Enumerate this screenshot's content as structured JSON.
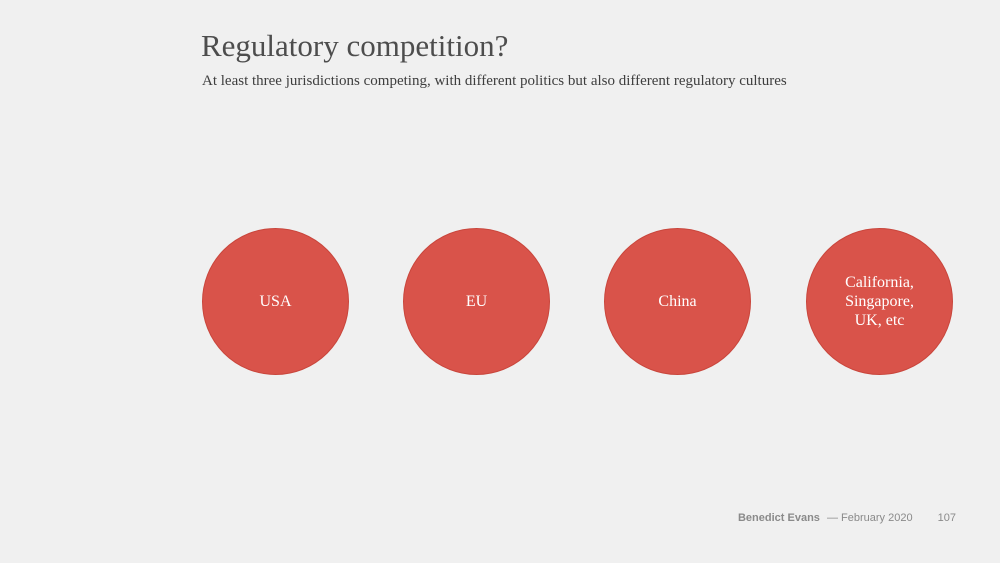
{
  "slide": {
    "title": "Regulatory competition?",
    "subtitle": "At least three jurisdictions competing, with different politics but also different regulatory cultures",
    "circles": [
      {
        "label": "USA"
      },
      {
        "label": "EU"
      },
      {
        "label": "China"
      },
      {
        "label": "California,\nSingapore,\nUK, etc"
      }
    ],
    "circle_color": "#d9534a"
  },
  "footer": {
    "author": "Benedict Evans",
    "date": "— February 2020",
    "page_number": "107"
  }
}
